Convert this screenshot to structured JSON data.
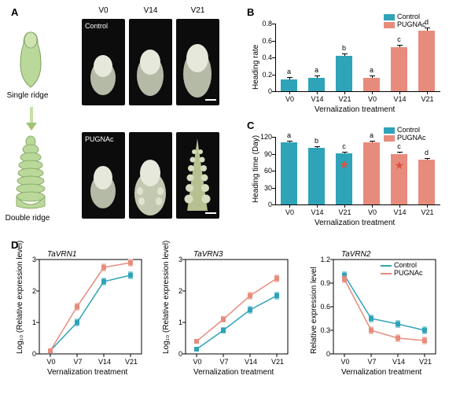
{
  "colors": {
    "control": "#2fa3b8",
    "pugnac": "#e78c7c",
    "axis": "#000000",
    "bg": "#ffffff",
    "star": "#e0503c"
  },
  "panelA": {
    "label": "A",
    "cols": [
      "V0",
      "V14",
      "V21"
    ],
    "rows": [
      {
        "name": "Control",
        "caption": "Single ridge"
      },
      {
        "name": "PUGNAc",
        "caption": "Double ridge"
      }
    ]
  },
  "panelB": {
    "label": "B",
    "ylab": "Heading rate",
    "xlab": "Vernalization treatment",
    "ylim": [
      0,
      0.8
    ],
    "ytick_step": 0.2,
    "categories": [
      "V0",
      "V14",
      "V21",
      "V0",
      "V14",
      "V21"
    ],
    "groups": [
      "Control",
      "Control",
      "Control",
      "PUGNAc",
      "PUGNAc",
      "PUGNAc"
    ],
    "values": [
      0.14,
      0.16,
      0.42,
      0.16,
      0.52,
      0.72
    ],
    "errors": [
      0.03,
      0.03,
      0.03,
      0.03,
      0.03,
      0.03
    ],
    "sig": [
      "a",
      "a",
      "b",
      "a",
      "c",
      "d"
    ],
    "legend": [
      "Control",
      "PUGNAc"
    ]
  },
  "panelC": {
    "label": "C",
    "ylab": "Heading time (Day)",
    "xlab": "Vernalization treatment",
    "ylim": [
      0,
      120
    ],
    "ytick_step": 30,
    "categories": [
      "V0",
      "V14",
      "V21",
      "V0",
      "V14",
      "V21"
    ],
    "groups": [
      "Control",
      "Control",
      "Control",
      "PUGNAc",
      "PUGNAc",
      "PUGNAc"
    ],
    "values": [
      110,
      100,
      91,
      110,
      90,
      80
    ],
    "errors": [
      3,
      3,
      3,
      3,
      3,
      3
    ],
    "sig": [
      "a",
      "b",
      "c",
      "a",
      "c",
      "d"
    ],
    "stars": [
      false,
      false,
      true,
      false,
      true,
      false
    ],
    "legend": [
      "Control",
      "PUGNAc"
    ]
  },
  "panelD": {
    "label": "D",
    "xlab": "Vernalization treatment",
    "x_categories": [
      "V0",
      "V7",
      "V14",
      "V21"
    ],
    "charts": [
      {
        "title": "TaVRN1",
        "ylab": "Log₁₀ (Relative expression level)",
        "ylim": [
          0,
          3
        ],
        "ytick_step": 1,
        "series": [
          {
            "name": "Control",
            "color": "#2fa3b8",
            "values": [
              0.1,
              1.0,
              2.3,
              2.5
            ],
            "errors": [
              0.05,
              0.1,
              0.1,
              0.1
            ]
          },
          {
            "name": "PUGNAc",
            "color": "#e78c7c",
            "values": [
              0.1,
              1.5,
              2.75,
              2.9
            ],
            "errors": [
              0.05,
              0.1,
              0.1,
              0.1
            ]
          }
        ]
      },
      {
        "title": "TaVRN3",
        "ylab": "Log₁₀ (Relative expression level)",
        "ylim": [
          0,
          3
        ],
        "ytick_step": 1,
        "series": [
          {
            "name": "Control",
            "color": "#2fa3b8",
            "values": [
              0.15,
              0.75,
              1.4,
              1.85
            ],
            "errors": [
              0.05,
              0.08,
              0.1,
              0.1
            ]
          },
          {
            "name": "PUGNAc",
            "color": "#e78c7c",
            "values": [
              0.4,
              1.1,
              1.85,
              2.4
            ],
            "errors": [
              0.05,
              0.08,
              0.1,
              0.1
            ]
          }
        ]
      },
      {
        "title": "TaVRN2",
        "ylab": "Relative expression level",
        "ylim": [
          0,
          1.2
        ],
        "ytick_step": 0.3,
        "legend": [
          "Control",
          "PUGNAc"
        ],
        "series": [
          {
            "name": "Control",
            "color": "#2fa3b8",
            "values": [
              1.0,
              0.45,
              0.38,
              0.3
            ],
            "errors": [
              0.04,
              0.04,
              0.04,
              0.04
            ]
          },
          {
            "name": "PUGNAc",
            "color": "#e78c7c",
            "values": [
              0.95,
              0.3,
              0.2,
              0.17
            ],
            "errors": [
              0.04,
              0.04,
              0.04,
              0.04
            ]
          }
        ]
      }
    ]
  }
}
